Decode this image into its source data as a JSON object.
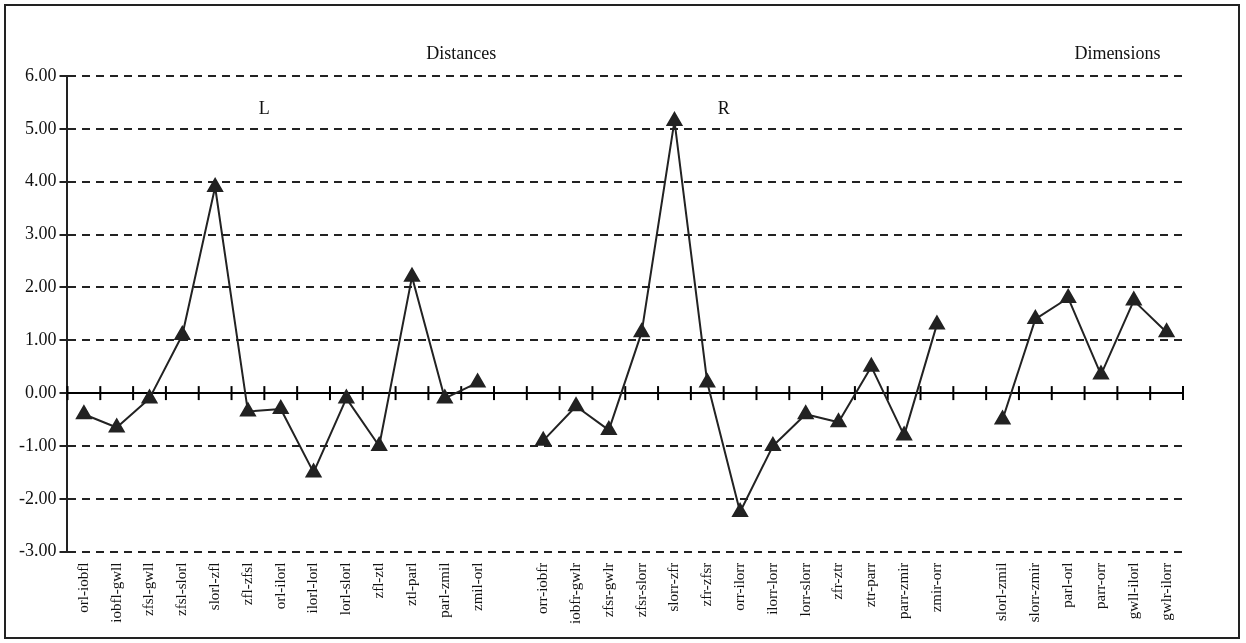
{
  "chart_data": {
    "type": "line",
    "categories": [
      "orl-iobfl",
      "iobfl-gwll",
      "zfsl-gwll",
      "zfsl-slorl",
      "slorl-zfl",
      "zfl-zfsl",
      "orl-ilorl",
      "ilorl-lorl",
      "lorl-slorl",
      "zfl-ztl",
      "ztl-parl",
      "parl-zmil",
      "zmil-orl",
      null,
      "orr-iobfr",
      "iobfr-gwlr",
      "zfsr-gwlr",
      "zfsr-slorr",
      "slorr-zfr",
      "zfr-zfsr",
      "orr-ilorr",
      "ilorr-lorr",
      "lorr-slorr",
      "zfr-ztr",
      "ztr-parr",
      "parr-zmir",
      "zmir-orr",
      null,
      "slorl-zmil",
      "slorr-zmir",
      "parl-orl",
      "parr-orr",
      "gwll-ilorl",
      "gwlr-ilorr"
    ],
    "series": [
      {
        "color": "#222222",
        "values": [
          -0.4,
          -0.65,
          -0.1,
          1.1,
          3.9,
          -0.35,
          -0.3,
          -1.5,
          -0.1,
          -1.0,
          2.2,
          -0.1,
          0.2,
          null,
          -0.9,
          -0.25,
          -0.7,
          1.15,
          5.15,
          0.2,
          -2.25,
          -1.0,
          -0.4,
          -0.55,
          0.5,
          -0.8,
          1.3,
          null,
          -0.5,
          1.4,
          1.8,
          0.35,
          1.75,
          1.15
        ]
      }
    ],
    "ylim": [
      -3,
      6
    ],
    "yticks": [
      {
        "value": -3,
        "label": "-3.00"
      },
      {
        "value": -2,
        "label": "-2.00"
      },
      {
        "value": -1,
        "label": "-1.00"
      },
      {
        "value": 0,
        "label": "0.00"
      },
      {
        "value": 1,
        "label": "1.00"
      },
      {
        "value": 2,
        "label": "2.00"
      },
      {
        "value": 3,
        "label": "3.00"
      },
      {
        "value": 4,
        "label": "4.00"
      },
      {
        "value": 5,
        "label": "5.00"
      },
      {
        "value": 6,
        "label": "6.00"
      }
    ],
    "grid": "y",
    "legend": false,
    "marker": "triangle",
    "line_style": "solid",
    "annotations": [
      "Distances",
      "Dimensions",
      "L",
      "R"
    ]
  }
}
